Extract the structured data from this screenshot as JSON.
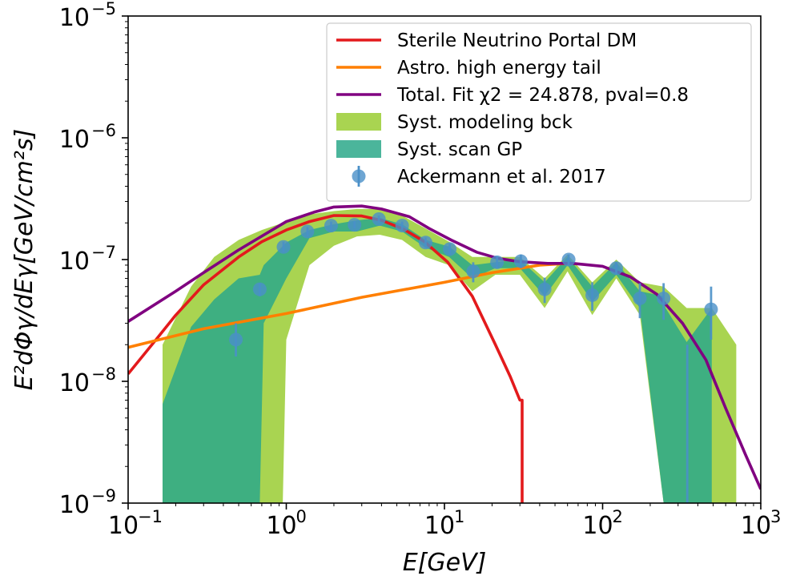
{
  "chart_data": {
    "type": "line",
    "xscale": "log",
    "yscale": "log",
    "xlim": [
      0.1,
      1000
    ],
    "ylim": [
      1e-09,
      1e-05
    ],
    "xlabel": "E[GeV]",
    "ylabel": "E²dΦγ/dEγ[GeV/cm²s]",
    "x_ticks": [
      {
        "base": "10",
        "exp": "−1",
        "value": 0.1
      },
      {
        "base": "10",
        "exp": "0",
        "value": 1
      },
      {
        "base": "10",
        "exp": "1",
        "value": 10
      },
      {
        "base": "10",
        "exp": "2",
        "value": 100
      },
      {
        "base": "10",
        "exp": "3",
        "value": 1000
      }
    ],
    "y_ticks": [
      {
        "base": "10",
        "exp": "−9",
        "value": 1e-09
      },
      {
        "base": "10",
        "exp": "−8",
        "value": 1e-08
      },
      {
        "base": "10",
        "exp": "−7",
        "value": 1e-07
      },
      {
        "base": "10",
        "exp": "−6",
        "value": 1e-06
      },
      {
        "base": "10",
        "exp": "−5",
        "value": 1e-05
      }
    ],
    "grid": false,
    "legend_position": "top-right",
    "legend": [
      {
        "label": "Sterile Neutrino Portal DM",
        "kind": "line",
        "color": "#e31a1c"
      },
      {
        "label": "Astro. high energy tail",
        "kind": "line",
        "color": "#ff7f00"
      },
      {
        "label": "Total. Fit χ2 = 24.878, pval=0.8",
        "kind": "line",
        "color": "#800080"
      },
      {
        "label": "Syst. modeling bck",
        "kind": "patch",
        "color": "#9acd32"
      },
      {
        "label": "Syst. scan GP",
        "kind": "patch",
        "color": "#2ca88a"
      },
      {
        "label": "Ackermann et al. 2017",
        "kind": "errorbar",
        "color": "#4a90c8"
      }
    ],
    "series": [
      {
        "name": "Sterile Neutrino Portal DM",
        "color": "#e31a1c",
        "x": [
          0.1,
          0.15,
          0.2,
          0.3,
          0.5,
          0.7,
          1.0,
          1.4,
          2.0,
          3.0,
          4.0,
          5.5,
          7.5,
          10.5,
          15.0,
          21.0,
          26.0,
          30.0,
          31.0,
          31.0
        ],
        "y": [
          1.15e-08,
          2.2e-08,
          3.5e-08,
          6.2e-08,
          1.05e-07,
          1.4e-07,
          1.75e-07,
          2.05e-07,
          2.3e-07,
          2.28e-07,
          2.1e-07,
          1.78e-07,
          1.4e-07,
          9.5e-08,
          5e-08,
          2e-08,
          1.1e-08,
          7e-09,
          7e-09,
          1e-09
        ]
      },
      {
        "name": "Astro. high energy tail",
        "color": "#ff7f00",
        "x": [
          0.1,
          0.3,
          1.0,
          3.0,
          10.0,
          20.0,
          40.0,
          60.0
        ],
        "y": [
          1.9e-08,
          2.7e-08,
          3.6e-08,
          4.9e-08,
          6.5e-08,
          7.8e-08,
          9e-08,
          9.3e-08
        ]
      },
      {
        "name": "Total. Fit χ2 = 24.878, pval=0.8",
        "color": "#800080",
        "x": [
          0.1,
          0.2,
          0.3,
          0.5,
          1.0,
          1.5,
          2.0,
          3.0,
          4.0,
          6.0,
          8.0,
          11.0,
          16.0,
          22.0,
          30.0,
          45.0,
          65.0,
          100.0,
          150.0,
          220.0,
          320.0,
          450.0,
          600.0,
          800.0,
          1000.0
        ],
        "y": [
          3.1e-08,
          5.5e-08,
          7.8e-08,
          1.2e-07,
          2.05e-07,
          2.45e-07,
          2.7e-07,
          2.75e-07,
          2.6e-07,
          2.25e-07,
          1.8e-07,
          1.45e-07,
          1.15e-07,
          1.02e-07,
          9.6e-08,
          9.3e-08,
          9.3e-08,
          8.8e-08,
          7.2e-08,
          5.2e-08,
          3e-08,
          1.5e-08,
          6e-09,
          2.5e-09,
          1.3e-09
        ]
      }
    ],
    "bands": [
      {
        "name": "Syst. modeling bck",
        "color": "#9acd32",
        "x": [
          0.165,
          0.25,
          0.35,
          0.5,
          0.7,
          0.95,
          1.0,
          1.4,
          2.0,
          2.8,
          3.9,
          5.4,
          7.6,
          10.7,
          15.0,
          21.0,
          30.0,
          43.0,
          60.0,
          86.0,
          122.0,
          172.0,
          243.0,
          340.0,
          490.0,
          700.0
        ],
        "upper": [
          2e-08,
          6e-08,
          1.05e-07,
          1.45e-07,
          1.75e-07,
          2e-07,
          2.1e-07,
          2.35e-07,
          2.5e-07,
          2.6e-07,
          2.6e-07,
          2.3e-07,
          1.8e-07,
          1.4e-07,
          1.05e-07,
          1.05e-07,
          1.05e-07,
          7e-08,
          1.1e-07,
          6.5e-08,
          1e-07,
          6.5e-08,
          6e-08,
          4e-08,
          4e-08,
          2e-08
        ],
        "lower": [
          1e-09,
          1e-09,
          1e-09,
          1e-09,
          1e-09,
          1e-09,
          2.2e-08,
          9e-08,
          1.3e-07,
          1.55e-07,
          1.6e-07,
          1.45e-07,
          1.05e-07,
          9e-08,
          5.5e-08,
          7.5e-08,
          7.5e-08,
          4e-08,
          8e-08,
          3.5e-08,
          7e-08,
          3.5e-08,
          1e-09,
          1e-09,
          1e-09,
          1e-09
        ]
      },
      {
        "name": "Syst. scan GP",
        "color": "#2ca88a",
        "x": [
          0.165,
          0.25,
          0.35,
          0.5,
          0.68,
          0.68,
          0.72,
          1.0,
          1.4,
          2.0,
          2.8,
          3.9,
          5.4,
          7.6,
          10.7,
          15.0,
          21.0,
          30.0,
          43.0,
          60.0,
          86.0,
          122.0,
          172.0,
          243.0,
          250.0,
          340.0,
          490.0
        ],
        "upper": [
          6.5e-09,
          2.8e-08,
          4.7e-08,
          7e-08,
          7.5e-08,
          7.5e-08,
          9e-08,
          1.38e-07,
          1.75e-07,
          1.95e-07,
          2.1e-07,
          2.2e-07,
          1.95e-07,
          1.45e-07,
          1.28e-07,
          9e-08,
          9.5e-08,
          1e-07,
          6.5e-08,
          1.05e-07,
          6e-08,
          9.5e-08,
          5.5e-08,
          5e-08,
          4e-08,
          2.1e-08,
          4e-08
        ],
        "lower": [
          1e-09,
          1e-09,
          1e-09,
          1e-09,
          1e-09,
          1e-09,
          3e-08,
          7e-08,
          1.5e-07,
          1.7e-07,
          1.7e-07,
          1.9e-07,
          1.7e-07,
          1.25e-07,
          1.05e-07,
          7e-08,
          8.5e-08,
          8.5e-08,
          5e-08,
          9e-08,
          4.5e-08,
          7.5e-08,
          4e-08,
          1e-09,
          1e-09,
          1e-09,
          1e-09
        ]
      }
    ],
    "points": {
      "name": "Ackermann et al. 2017",
      "color": "#4a90c8",
      "x": [
        0.48,
        0.68,
        0.96,
        1.36,
        1.92,
        2.7,
        3.85,
        5.4,
        7.6,
        10.8,
        15.2,
        21.5,
        30.4,
        43.0,
        61.0,
        86.0,
        122.0,
        172.0,
        243.0,
        343.0,
        485.0
      ],
      "y": [
        2.2e-08,
        5.7e-08,
        1.27e-07,
        1.7e-07,
        1.9e-07,
        1.93e-07,
        2.15e-07,
        1.9e-07,
        1.38e-07,
        1.22e-07,
        8e-08,
        9.5e-08,
        9.7e-08,
        5.7e-08,
        1e-07,
        5.1e-08,
        8.5e-08,
        4.8e-08,
        4.8e-08,
        null,
        3.9e-08
      ],
      "yerr_low": [
        1.6e-08,
        5e-08,
        1.15e-07,
        1.55e-07,
        1.75e-07,
        1.8e-07,
        2e-07,
        1.75e-07,
        1.25e-07,
        1.1e-07,
        6.5e-08,
        8.5e-08,
        8.5e-08,
        4.4e-08,
        9e-08,
        3.8e-08,
        7.5e-08,
        3.3e-08,
        3.2e-08,
        1e-09,
        2.2e-08
      ],
      "yerr_high": [
        3e-08,
        6.4e-08,
        1.4e-07,
        1.85e-07,
        2.05e-07,
        2.07e-07,
        2.3e-07,
        2.05e-07,
        1.52e-07,
        1.35e-07,
        9.5e-08,
        1.06e-07,
        1.1e-07,
        7.1e-08,
        1.1e-07,
        6.5e-08,
        9.5e-08,
        6.4e-08,
        6.4e-08,
        2e-08,
        6e-08
      ]
    }
  }
}
